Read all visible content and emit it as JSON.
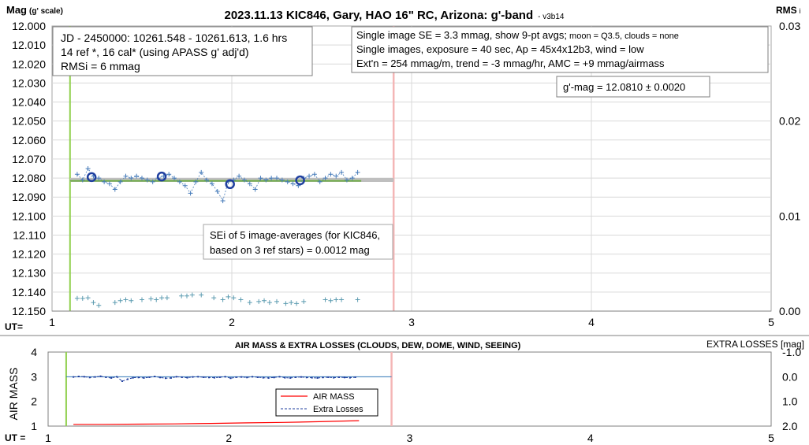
{
  "chart_data": [
    {
      "type": "scatter",
      "title": "2023.11.13 KIC846, Gary, HAO 16\" RC, Arizona: g'-band",
      "version": "- v3b14",
      "ylabel_main": "Mag",
      "ylabel_sub": "(g' scale)",
      "y2label_main": "RMS",
      "y2label_sub": "i",
      "xlabel": "UT=",
      "xlim": [
        1,
        5
      ],
      "xticks": [
        "1",
        "2",
        "3",
        "4",
        "5"
      ],
      "ylim": [
        12.0,
        12.15
      ],
      "y_inverted": true,
      "yticks": [
        "12.000",
        "12.010",
        "12.020",
        "12.030",
        "12.040",
        "12.050",
        "12.060",
        "12.070",
        "12.080",
        "12.090",
        "12.100",
        "12.110",
        "12.120",
        "12.130",
        "12.140",
        "12.150"
      ],
      "y2lim": [
        0,
        0.03
      ],
      "y2ticks": [
        "0.03",
        "0.02",
        "0.01",
        "0.00"
      ],
      "grid": true,
      "info_box_left": [
        "JD - 2450000: 10261.548 - 10261.613, 1.6 hrs",
        "14 ref *, 16 cal* (using APASS g' adj'd)",
        "RMSi = 6 mmag"
      ],
      "info_box_right": {
        "line1_main": "Single image SE = 3.3 mmag, show  9-pt avgs;",
        "line1_small": " moon = Q3.5, clouds = none",
        "line2": "Single images, exposure = 40 sec, Ap = 45x4x12b3, wind = low",
        "line3": "Ext'n = 254 mmag/m, trend = -3 mmag/hr, AMC = +9 mmag/airmass"
      },
      "gmag_label": "g'-mag = 12.0810 ± 0.0020",
      "sei_label": [
        "SEi of 5 image-averages (for KIC846,",
        "based on 3 ref stars) = 0.0012 mag"
      ],
      "colors": {
        "green_marker": "#92d050",
        "red_marker": "#f4b6b6",
        "points": "#4a7ebb",
        "avg_circles": "#1f3f9f",
        "rms_points": "#5b9bb0",
        "fit_line": "#70ad47",
        "mean_band": "#bfbfbf"
      },
      "vline_green_x": 1.1,
      "vline_red_x": 2.9,
      "mean_mag": 12.081,
      "fit_line": {
        "x": [
          1.1,
          2.72
        ],
        "y": [
          12.0815,
          12.0815
        ]
      },
      "series": [
        {
          "name": "single images",
          "marker": "plus",
          "x": [
            1.14,
            1.17,
            1.2,
            1.23,
            1.26,
            1.29,
            1.32,
            1.35,
            1.38,
            1.41,
            1.44,
            1.47,
            1.5,
            1.53,
            1.56,
            1.59,
            1.62,
            1.65,
            1.68,
            1.71,
            1.74,
            1.77,
            1.8,
            1.83,
            1.86,
            1.89,
            1.92,
            1.95,
            1.98,
            2.01,
            2.04,
            2.07,
            2.1,
            2.13,
            2.16,
            2.19,
            2.22,
            2.25,
            2.28,
            2.31,
            2.34,
            2.37,
            2.4,
            2.43,
            2.46,
            2.49,
            2.52,
            2.55,
            2.58,
            2.61,
            2.64,
            2.67,
            2.7
          ],
          "y": [
            12.078,
            12.081,
            12.075,
            12.079,
            12.08,
            12.082,
            12.083,
            12.086,
            12.082,
            12.079,
            12.08,
            12.079,
            12.08,
            12.081,
            12.082,
            12.08,
            12.079,
            12.078,
            12.08,
            12.082,
            12.084,
            12.088,
            12.082,
            12.077,
            12.081,
            12.083,
            12.087,
            12.092,
            12.082,
            12.081,
            12.079,
            12.081,
            12.083,
            12.086,
            12.08,
            12.081,
            12.08,
            12.08,
            12.081,
            12.082,
            12.083,
            12.084,
            12.08,
            12.079,
            12.078,
            12.082,
            12.08,
            12.078,
            12.079,
            12.077,
            12.081,
            12.08,
            12.077
          ]
        },
        {
          "name": "9-pt averages",
          "marker": "circle",
          "x": [
            1.22,
            1.61,
            1.99,
            2.38
          ],
          "y": [
            12.0795,
            12.0792,
            12.0832,
            12.0812
          ]
        },
        {
          "name": "RMSi",
          "marker": "plus",
          "axis": "y2",
          "x": [
            1.14,
            1.17,
            1.2,
            1.23,
            1.26,
            1.35,
            1.38,
            1.41,
            1.44,
            1.5,
            1.55,
            1.58,
            1.61,
            1.64,
            1.72,
            1.75,
            1.78,
            1.83,
            1.9,
            1.95,
            1.98,
            2.01,
            2.05,
            2.1,
            2.15,
            2.18,
            2.21,
            2.25,
            2.3,
            2.33,
            2.36,
            2.4,
            2.52,
            2.55,
            2.58,
            2.61,
            2.7
          ],
          "y": [
            0.00135,
            0.00134,
            0.0014,
            0.0009,
            0.0006,
            0.0009,
            0.0011,
            0.0012,
            0.0011,
            0.0012,
            0.0013,
            0.0012,
            0.0014,
            0.0014,
            0.0016,
            0.0016,
            0.0017,
            0.0017,
            0.0014,
            0.0012,
            0.0015,
            0.0014,
            0.0012,
            0.0009,
            0.001,
            0.0011,
            0.0009,
            0.001,
            0.0008,
            0.0009,
            0.0008,
            0.001,
            0.0012,
            0.0011,
            0.0012,
            0.0012,
            0.0012
          ]
        }
      ]
    },
    {
      "type": "line",
      "title": "AIR MASS & EXTRA LOSSES (CLOUDS, DEW, DOME, WIND, SEEING)",
      "ylabel": "AIR MASS",
      "y2label": "EXTRA LOSSES [mag]",
      "xlabel": "UT =",
      "xlim": [
        1,
        5
      ],
      "xticks": [
        "1",
        "2",
        "3",
        "4",
        "5"
      ],
      "ylim": [
        1,
        4
      ],
      "yticks": [
        "4",
        "3",
        "2",
        "1"
      ],
      "y2lim": [
        -1.0,
        2.0
      ],
      "y2ticks": [
        "-1.0",
        "0.0",
        "1.0",
        "2.0"
      ],
      "grid": false,
      "vline_green_x": 1.1,
      "vline_red_x": 2.9,
      "legend": [
        "AIR MASS",
        "Extra Losses"
      ],
      "legend_position": "center",
      "colors": {
        "air_mass": "#ff0000",
        "extra_losses": "#1f3f9f",
        "zero_line": "#2e75b6"
      },
      "series": [
        {
          "name": "AIR MASS",
          "x": [
            1.14,
            1.3,
            1.5,
            1.7,
            1.9,
            2.1,
            2.3,
            2.5,
            2.72
          ],
          "y": [
            1.07,
            1.07,
            1.08,
            1.09,
            1.11,
            1.13,
            1.15,
            1.18,
            1.22
          ]
        },
        {
          "name": "Extra Losses",
          "x": [
            1.14,
            1.17,
            1.2,
            1.23,
            1.26,
            1.29,
            1.32,
            1.35,
            1.38,
            1.41,
            1.44,
            1.47,
            1.5,
            1.53,
            1.56,
            1.59,
            1.62,
            1.65,
            1.68,
            1.71,
            1.74,
            1.77,
            1.8,
            1.83,
            1.86,
            1.89,
            1.92,
            1.95,
            1.98,
            2.01,
            2.04,
            2.07,
            2.1,
            2.13,
            2.16,
            2.19,
            2.22,
            2.25,
            2.28,
            2.31,
            2.34,
            2.37,
            2.4,
            2.43,
            2.46,
            2.49,
            2.52,
            2.55,
            2.58,
            2.61,
            2.64,
            2.67,
            2.7
          ],
          "y": [
            0.01,
            -0.01,
            0.0,
            0.03,
            0.01,
            -0.02,
            0.02,
            0.05,
            0.0,
            0.18,
            0.1,
            0.04,
            0.03,
            0.05,
            0.02,
            -0.01,
            0.03,
            0.06,
            0.05,
            0.0,
            0.02,
            0.04,
            0.01,
            0.0,
            0.02,
            0.03,
            0.04,
            0.02,
            0.0,
            0.06,
            0.02,
            0.01,
            0.03,
            0.0,
            0.02,
            0.04,
            0.05,
            0.03,
            0.0,
            0.04,
            0.05,
            0.02,
            0.01,
            0.03,
            0.04,
            0.05,
            0.03,
            0.02,
            0.04,
            0.02,
            0.03,
            0.04,
            0.02
          ]
        }
      ]
    }
  ]
}
